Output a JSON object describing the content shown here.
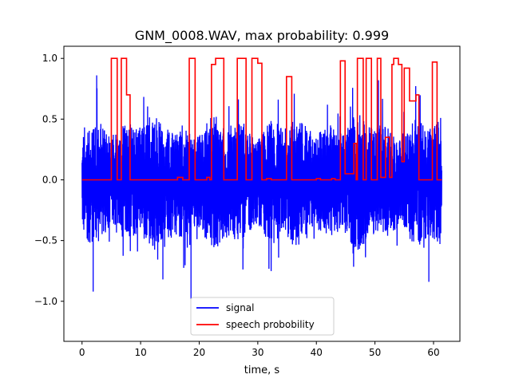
{
  "chart_data": {
    "type": "line",
    "title": "GNM_0008.WAV, max probability: 0.999",
    "xlabel": "time, s",
    "ylabel": "",
    "xlim": [
      -3.1,
      64.5
    ],
    "ylim": [
      -1.33,
      1.1
    ],
    "x_ticks": [
      0,
      10,
      20,
      30,
      40,
      50,
      60
    ],
    "x_tick_labels": [
      "0",
      "10",
      "20",
      "30",
      "40",
      "50",
      "60"
    ],
    "y_ticks": [
      -1.0,
      -0.5,
      0.0,
      0.5,
      1.0
    ],
    "y_tick_labels": [
      "−1.0",
      "−0.5",
      "0.0",
      "0.5",
      "1.0"
    ],
    "grid": false,
    "legend_position": "lower-center",
    "series": [
      {
        "name": "signal",
        "color": "#0000ff",
        "x_range": [
          0,
          61.4
        ],
        "style": "dense-audio-waveform",
        "typical_amplitude": [
          -0.55,
          0.55
        ],
        "min": -0.98,
        "max": 0.87
      },
      {
        "name": "speech probobility",
        "color": "#ff0000",
        "points": [
          [
            0,
            0
          ],
          [
            5.0,
            0
          ],
          [
            5.0,
            1.0
          ],
          [
            6.0,
            1.0
          ],
          [
            6.0,
            0
          ],
          [
            6.7,
            0
          ],
          [
            6.7,
            1.0
          ],
          [
            7.6,
            1.0
          ],
          [
            7.6,
            0.7
          ],
          [
            8.2,
            0.7
          ],
          [
            8.2,
            0
          ],
          [
            16.3,
            0
          ],
          [
            16.3,
            0.02
          ],
          [
            17.2,
            0.02
          ],
          [
            17.2,
            0
          ],
          [
            18.3,
            0
          ],
          [
            18.3,
            1.0
          ],
          [
            19.3,
            1.0
          ],
          [
            19.3,
            0
          ],
          [
            21.3,
            0
          ],
          [
            21.3,
            0.02
          ],
          [
            21.8,
            0.02
          ],
          [
            21.8,
            0
          ],
          [
            22.1,
            0
          ],
          [
            22.1,
            0.95
          ],
          [
            22.8,
            0.95
          ],
          [
            22.8,
            1.0
          ],
          [
            24.2,
            1.0
          ],
          [
            24.2,
            0
          ],
          [
            26.5,
            0
          ],
          [
            26.5,
            1.0
          ],
          [
            28.0,
            1.0
          ],
          [
            28.0,
            0
          ],
          [
            29.0,
            0
          ],
          [
            29.0,
            1.0
          ],
          [
            30.0,
            1.0
          ],
          [
            30.0,
            0.96
          ],
          [
            30.7,
            0.96
          ],
          [
            30.7,
            0
          ],
          [
            31.5,
            0
          ],
          [
            31.5,
            0.01
          ],
          [
            32.3,
            0.01
          ],
          [
            32.3,
            0
          ],
          [
            34.9,
            0
          ],
          [
            34.9,
            0.85
          ],
          [
            35.8,
            0.85
          ],
          [
            35.8,
            0
          ],
          [
            40.0,
            0
          ],
          [
            40.0,
            0.01
          ],
          [
            40.7,
            0.01
          ],
          [
            40.7,
            0
          ],
          [
            42.6,
            0
          ],
          [
            42.6,
            0.01
          ],
          [
            43.2,
            0.01
          ],
          [
            43.2,
            0
          ],
          [
            44.1,
            0
          ],
          [
            44.1,
            0.98
          ],
          [
            44.9,
            0.98
          ],
          [
            44.9,
            0.05
          ],
          [
            46.4,
            0.05
          ],
          [
            46.4,
            0.3
          ],
          [
            46.8,
            0.3
          ],
          [
            46.8,
            0
          ],
          [
            47.0,
            0
          ],
          [
            47.0,
            1.0
          ],
          [
            48.0,
            1.0
          ],
          [
            48.0,
            0
          ],
          [
            48.5,
            0
          ],
          [
            48.5,
            1.0
          ],
          [
            49.4,
            1.0
          ],
          [
            49.4,
            0
          ],
          [
            50.4,
            0
          ],
          [
            50.4,
            1.0
          ],
          [
            51.0,
            1.0
          ],
          [
            51.0,
            0.02
          ],
          [
            51.8,
            0.02
          ],
          [
            51.8,
            0.35
          ],
          [
            52.5,
            0.35
          ],
          [
            52.5,
            0.02
          ],
          [
            52.9,
            0.02
          ],
          [
            52.9,
            0.95
          ],
          [
            53.2,
            0.95
          ],
          [
            53.2,
            1.0
          ],
          [
            54.0,
            1.0
          ],
          [
            54.0,
            0.95
          ],
          [
            54.6,
            0.95
          ],
          [
            54.6,
            0.15
          ],
          [
            55.0,
            0.15
          ],
          [
            55.0,
            0.92
          ],
          [
            55.9,
            0.92
          ],
          [
            55.9,
            0.65
          ],
          [
            57.0,
            0.65
          ],
          [
            57.0,
            0.7
          ],
          [
            57.5,
            0.7
          ],
          [
            57.5,
            0
          ],
          [
            59.8,
            0
          ],
          [
            59.8,
            0.97
          ],
          [
            60.6,
            0.97
          ],
          [
            60.6,
            0
          ],
          [
            61.4,
            0
          ]
        ]
      }
    ]
  }
}
